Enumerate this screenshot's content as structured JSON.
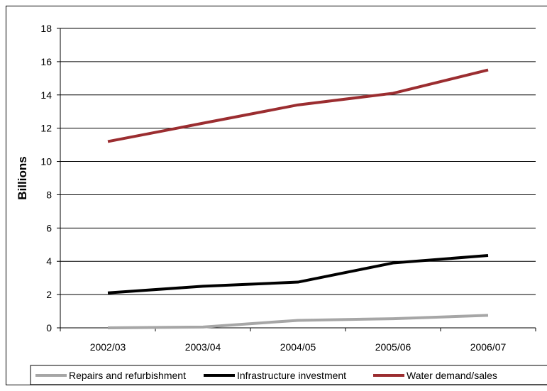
{
  "chart_data": {
    "type": "line",
    "title": "",
    "xlabel": "",
    "ylabel": "Billions",
    "categories": [
      "2002/03",
      "2003/04",
      "2004/05",
      "2005/06",
      "2006/07"
    ],
    "ylim": [
      0,
      18
    ],
    "yticks": [
      0,
      2,
      4,
      6,
      8,
      10,
      12,
      14,
      16,
      18
    ],
    "grid": "horizontal",
    "legend_position": "bottom",
    "series": [
      {
        "name": "Repairs and refurbishment",
        "color": "#a6a6a6",
        "values": [
          0.0,
          0.05,
          0.45,
          0.55,
          0.75
        ]
      },
      {
        "name": "Infrastructure investment",
        "color": "#000000",
        "values": [
          2.1,
          2.5,
          2.75,
          3.9,
          4.35
        ]
      },
      {
        "name": "Water demand/sales",
        "color": "#9b2d30",
        "values": [
          11.2,
          12.3,
          13.4,
          14.1,
          15.5
        ]
      }
    ]
  }
}
